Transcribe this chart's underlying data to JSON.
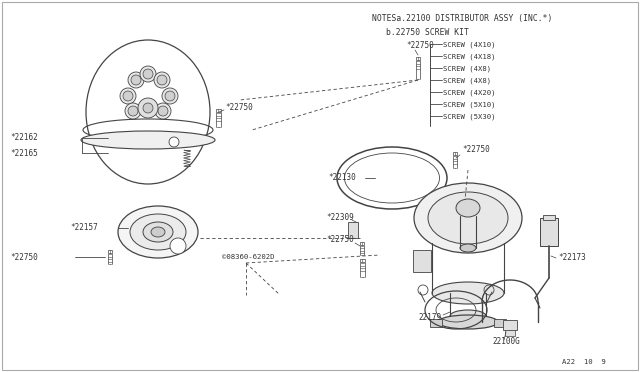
{
  "bg": "#ffffff",
  "lc": "#444444",
  "tc": "#333333",
  "fig_width": 6.4,
  "fig_height": 3.72,
  "dpi": 100,
  "border_color": "#999999",
  "notes_line1": "NOTESa.22100 DISTRIBUTOR ASSY (INC.*)",
  "notes_line2": "b.22750 SCREW KIT",
  "screw_list": [
    "SCREW (4X10)",
    "SCREW (4X18)",
    "SCREW (4X8)",
    "SCREW (4X8)",
    "SCREW (4X20)",
    "SCREW (5X10)",
    "SCREW (5X30)"
  ],
  "page_ref": "A22  10  9"
}
